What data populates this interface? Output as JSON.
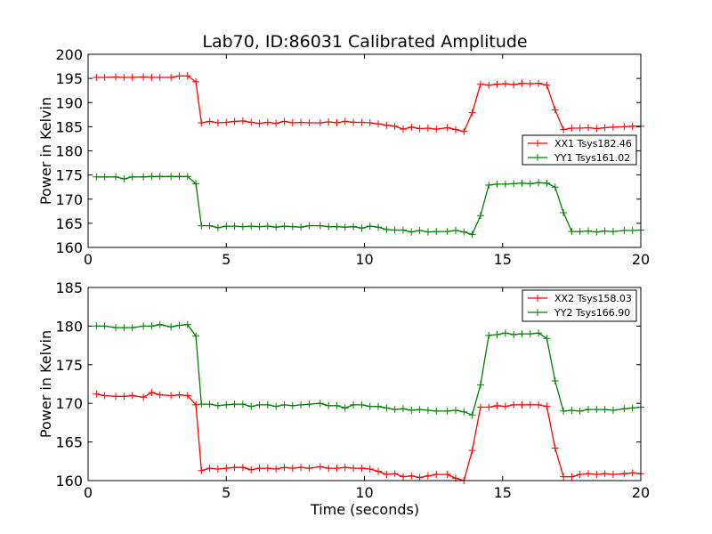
{
  "figure": {
    "title": "Lab70, ID:86031 Calibrated Amplitude",
    "xlabel": "Time (seconds)"
  },
  "chart_data": [
    {
      "type": "line",
      "title": "Lab70, ID:86031 Calibrated Amplitude",
      "xlabel": "",
      "ylabel": "Power in Kelvin",
      "xlim": [
        0,
        20
      ],
      "ylim": [
        160,
        200
      ],
      "xticks": [
        0,
        5,
        10,
        15,
        20
      ],
      "yticks": [
        160,
        165,
        170,
        175,
        180,
        185,
        190,
        195,
        200
      ],
      "legend": "center-right",
      "x": [
        0.3,
        0.6,
        1.0,
        1.3,
        1.6,
        2.0,
        2.3,
        2.6,
        3.0,
        3.3,
        3.6,
        3.9,
        4.1,
        4.4,
        4.7,
        5.0,
        5.3,
        5.6,
        5.9,
        6.2,
        6.5,
        6.8,
        7.1,
        7.4,
        7.7,
        8.0,
        8.4,
        8.7,
        9.0,
        9.3,
        9.6,
        9.9,
        10.2,
        10.5,
        10.8,
        11.1,
        11.4,
        11.7,
        12.0,
        12.3,
        12.6,
        13.0,
        13.3,
        13.6,
        13.9,
        14.2,
        14.5,
        14.8,
        15.1,
        15.4,
        15.7,
        16.0,
        16.3,
        16.6,
        16.9,
        17.2,
        17.5,
        17.8,
        18.1,
        18.4,
        18.7,
        19.0,
        19.4,
        19.7,
        20.0
      ],
      "series": [
        {
          "name": "XX1 Tsys182.46",
          "color": "#ff0000",
          "values": [
            195.2,
            195.2,
            195.3,
            195.2,
            195.2,
            195.3,
            195.2,
            195.2,
            195.2,
            195.5,
            195.5,
            194.3,
            185.8,
            186.1,
            185.8,
            185.9,
            186.1,
            186.2,
            185.9,
            185.7,
            185.9,
            185.7,
            186.1,
            185.8,
            185.9,
            185.8,
            185.8,
            186.0,
            185.8,
            186.1,
            185.9,
            185.9,
            185.8,
            185.6,
            185.3,
            185.1,
            184.5,
            184.9,
            184.6,
            184.7,
            184.5,
            184.8,
            184.4,
            184.0,
            187.9,
            193.8,
            193.6,
            193.8,
            193.9,
            193.7,
            194.0,
            193.9,
            194.0,
            193.6,
            188.5,
            184.4,
            184.7,
            184.7,
            184.8,
            184.6,
            184.8,
            184.9,
            185.0,
            185.1,
            185.1
          ]
        },
        {
          "name": "YY1 Tsys161.02",
          "color": "#008000",
          "values": [
            174.6,
            174.6,
            174.6,
            174.2,
            174.6,
            174.6,
            174.7,
            174.7,
            174.7,
            174.7,
            174.7,
            173.2,
            164.5,
            164.5,
            164.1,
            164.4,
            164.4,
            164.3,
            164.4,
            164.3,
            164.4,
            164.2,
            164.4,
            164.3,
            164.2,
            164.5,
            164.5,
            164.3,
            164.3,
            164.2,
            164.3,
            164.0,
            164.4,
            164.2,
            163.7,
            163.6,
            163.6,
            163.2,
            163.5,
            163.2,
            163.3,
            163.3,
            163.5,
            163.2,
            162.7,
            166.6,
            172.9,
            173.1,
            173.1,
            173.2,
            173.3,
            173.2,
            173.4,
            173.3,
            172.5,
            167.2,
            163.3,
            163.3,
            163.4,
            163.2,
            163.4,
            163.3,
            163.5,
            163.5,
            163.6
          ]
        }
      ]
    },
    {
      "type": "line",
      "title": "",
      "xlabel": "Time (seconds)",
      "ylabel": "Power in Kelvin",
      "xlim": [
        0,
        20
      ],
      "ylim": [
        160,
        185
      ],
      "xticks": [
        0,
        5,
        10,
        15,
        20
      ],
      "yticks": [
        160,
        165,
        170,
        175,
        180,
        185
      ],
      "legend": "top-right",
      "x": [
        0.3,
        0.6,
        1.0,
        1.3,
        1.6,
        2.0,
        2.3,
        2.6,
        3.0,
        3.3,
        3.6,
        3.9,
        4.1,
        4.4,
        4.7,
        5.0,
        5.3,
        5.6,
        5.9,
        6.2,
        6.5,
        6.8,
        7.1,
        7.4,
        7.7,
        8.0,
        8.4,
        8.7,
        9.0,
        9.3,
        9.6,
        9.9,
        10.2,
        10.5,
        10.8,
        11.1,
        11.4,
        11.7,
        12.0,
        12.3,
        12.6,
        13.0,
        13.3,
        13.6,
        13.9,
        14.2,
        14.5,
        14.8,
        15.1,
        15.4,
        15.7,
        16.0,
        16.3,
        16.6,
        16.9,
        17.2,
        17.5,
        17.8,
        18.1,
        18.4,
        18.7,
        19.0,
        19.4,
        19.7,
        20.0
      ],
      "series": [
        {
          "name": "XX2 Tsys158.03",
          "color": "#ff0000",
          "values": [
            171.2,
            171.0,
            170.9,
            170.9,
            171.0,
            170.8,
            171.4,
            171.1,
            171.0,
            171.1,
            171.0,
            169.8,
            161.3,
            161.6,
            161.5,
            161.6,
            161.7,
            161.7,
            161.4,
            161.6,
            161.6,
            161.5,
            161.7,
            161.6,
            161.7,
            161.6,
            161.8,
            161.6,
            161.6,
            161.7,
            161.6,
            161.6,
            161.5,
            161.2,
            160.8,
            160.9,
            160.5,
            160.6,
            160.4,
            160.6,
            160.8,
            160.8,
            160.3,
            160.0,
            163.9,
            169.5,
            169.5,
            169.7,
            169.6,
            169.8,
            169.8,
            169.8,
            169.8,
            169.6,
            164.2,
            160.5,
            160.5,
            160.8,
            160.9,
            160.8,
            160.9,
            160.8,
            160.9,
            161.0,
            160.9
          ]
        },
        {
          "name": "YY2 Tsys166.90",
          "color": "#008000",
          "values": [
            180.0,
            180.0,
            179.8,
            179.8,
            179.8,
            180.0,
            180.0,
            180.2,
            179.9,
            180.1,
            180.2,
            178.7,
            169.9,
            169.9,
            169.7,
            169.8,
            169.9,
            169.9,
            169.6,
            169.8,
            169.8,
            169.6,
            169.8,
            169.7,
            169.8,
            169.9,
            170.0,
            169.7,
            169.7,
            169.4,
            169.8,
            169.8,
            169.6,
            169.6,
            169.4,
            169.2,
            169.3,
            169.1,
            169.2,
            169.1,
            169.0,
            169.0,
            169.1,
            168.9,
            168.5,
            172.4,
            178.8,
            178.9,
            179.1,
            178.9,
            179.0,
            179.0,
            179.1,
            178.4,
            172.9,
            169.0,
            169.1,
            169.0,
            169.2,
            169.2,
            169.2,
            169.1,
            169.3,
            169.4,
            169.5
          ]
        }
      ]
    }
  ]
}
